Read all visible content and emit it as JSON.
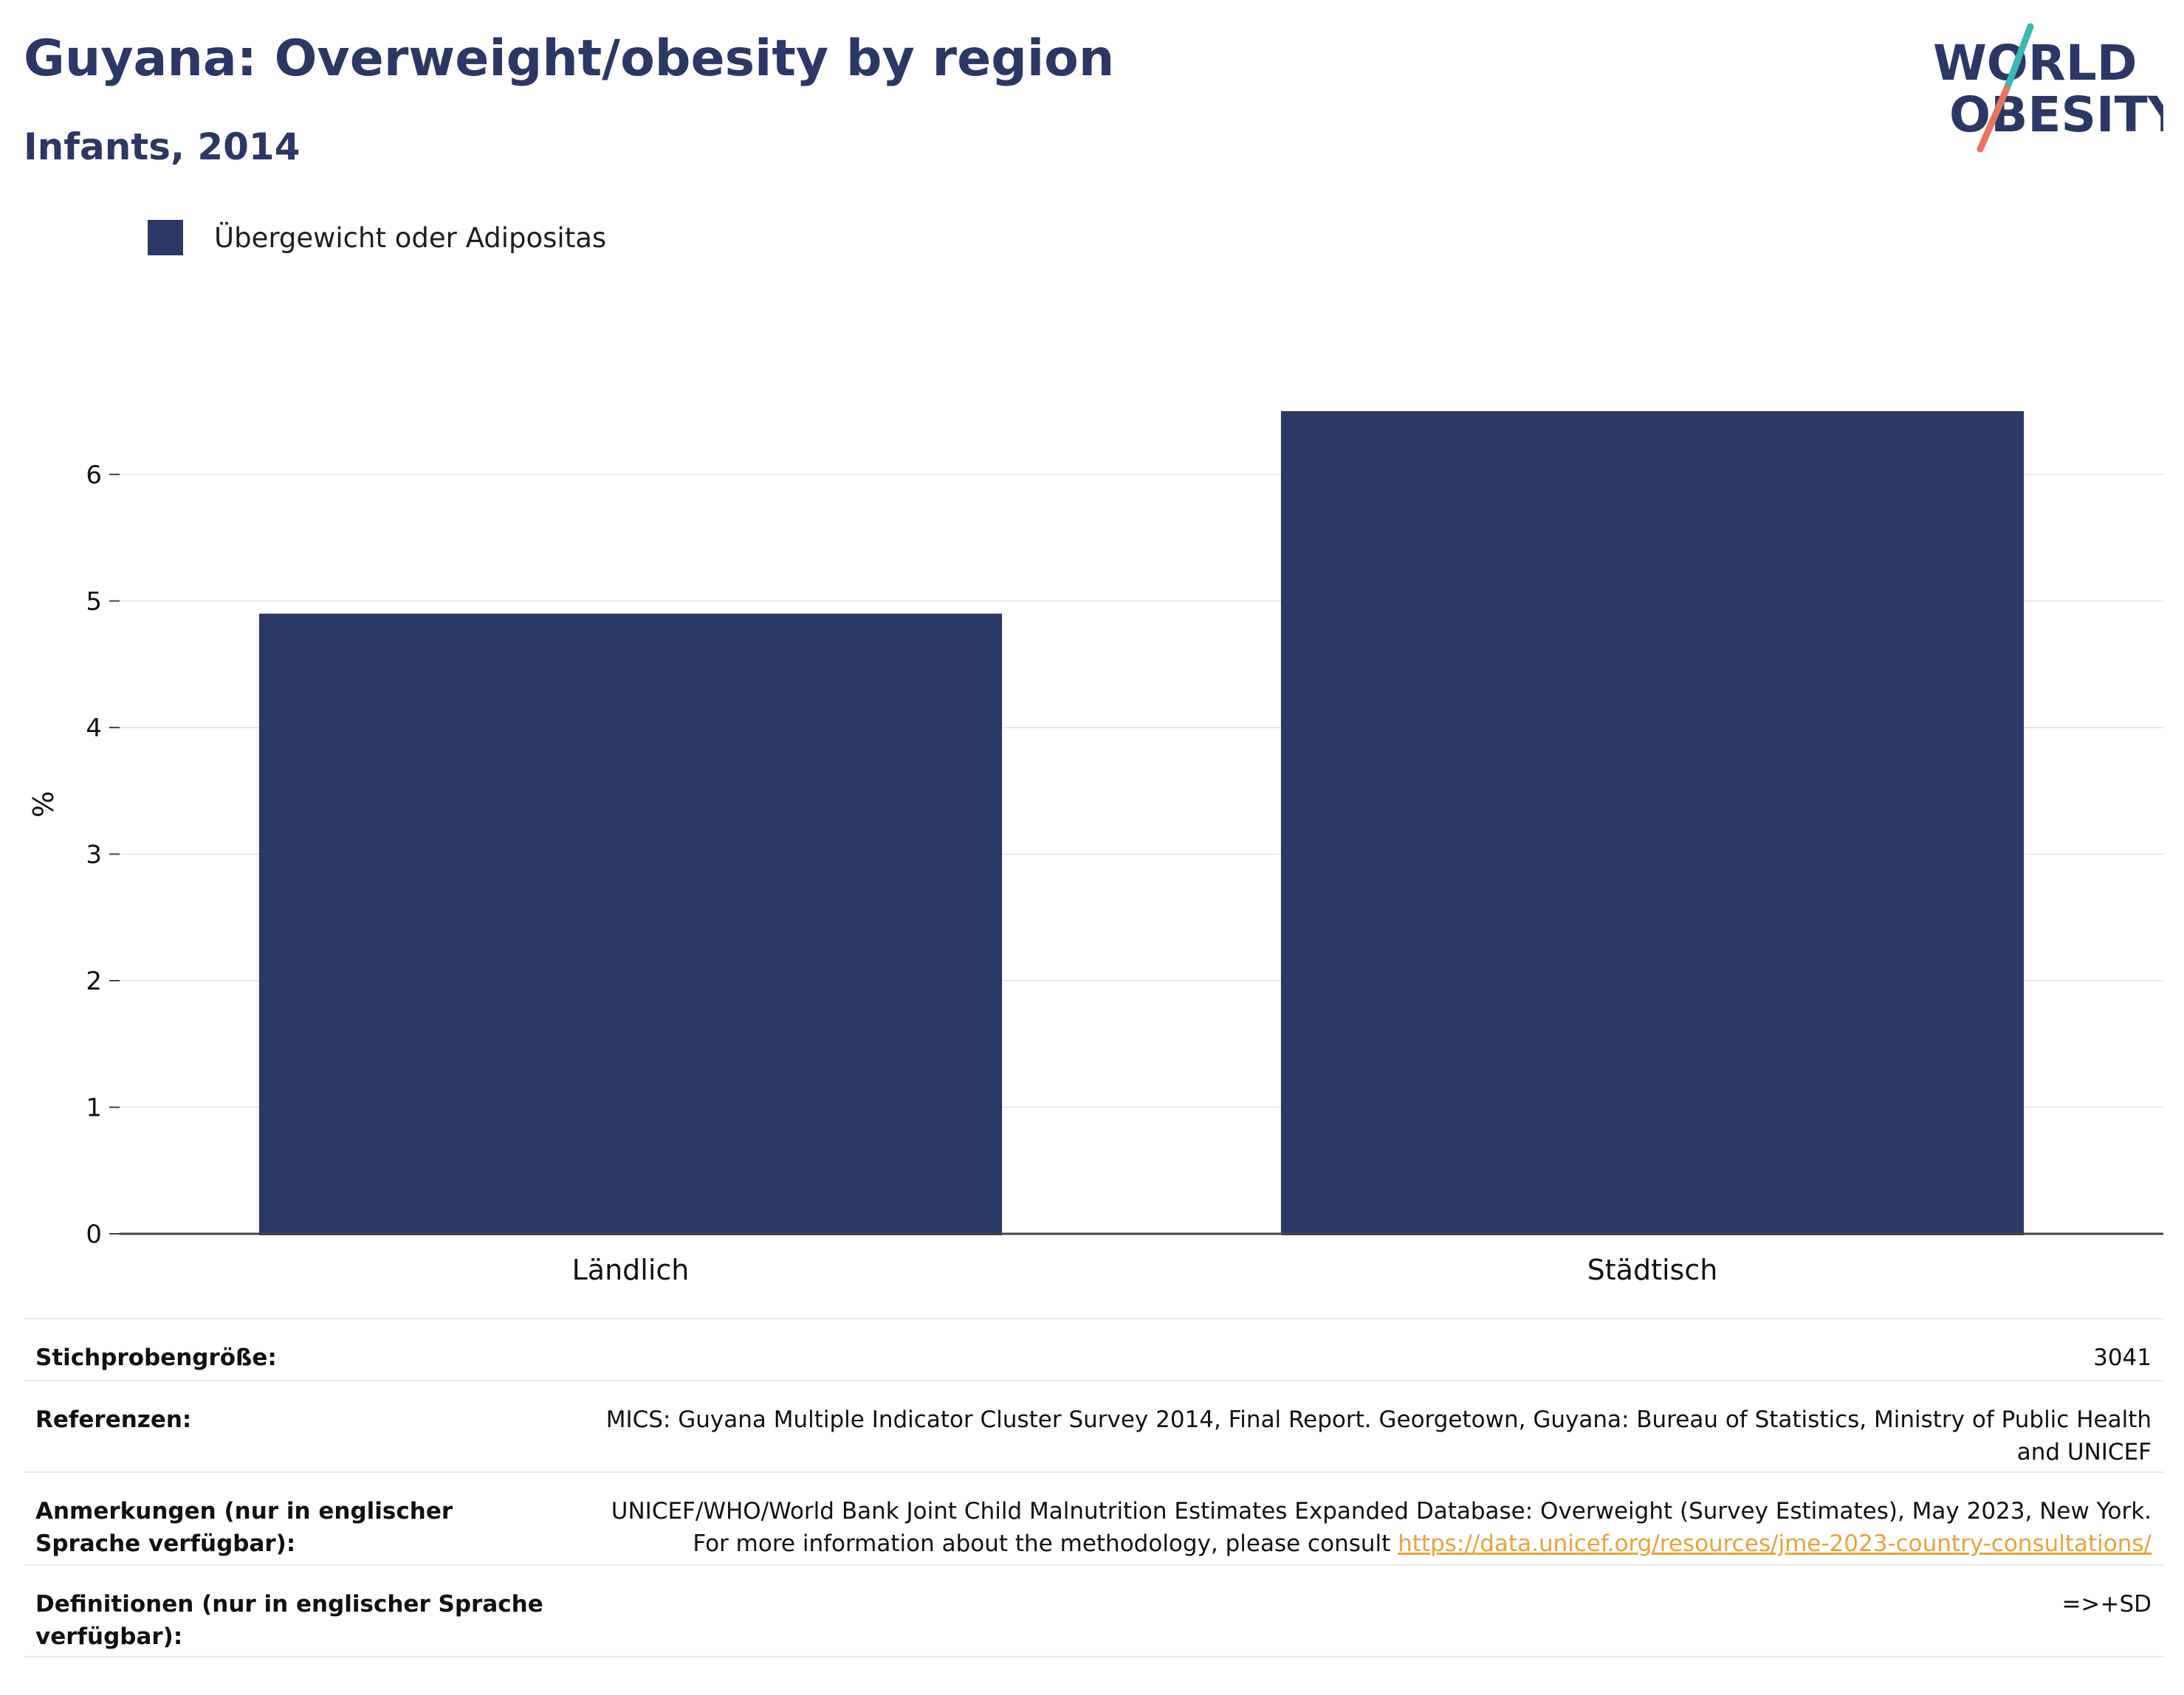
{
  "header": {
    "title": "Guyana: Overweight/obesity by region",
    "subtitle": "Infants, 2014"
  },
  "logo": {
    "line1": "WORLD",
    "line2": "OBESITY",
    "text_color": "#2b3764",
    "accent_teal": "#3bb8b3",
    "accent_coral": "#e8735f"
  },
  "chart_data": {
    "type": "bar",
    "categories": [
      "Ländlich",
      "Städtisch"
    ],
    "series": [
      {
        "name": "Übergewicht oder Adipositas",
        "values": [
          4.9,
          6.5
        ],
        "color": "#2b3764"
      }
    ],
    "xlabel": "",
    "ylabel": "%",
    "ylim": [
      0,
      6.6
    ],
    "yticks": [
      0,
      1,
      2,
      3,
      4,
      5,
      6
    ],
    "grid": true,
    "legend": "top-left"
  },
  "info": {
    "rows": [
      {
        "label": "Stichprobengröße:",
        "value": "3041"
      },
      {
        "label": "Referenzen:",
        "value": "MICS: Guyana Multiple Indicator Cluster Survey 2014, Final Report. Georgetown, Guyana: Bureau of Statistics, Ministry of Public Health and UNICEF"
      },
      {
        "label": "Anmerkungen (nur in englischer Sprache verfügbar):",
        "value": "UNICEF/WHO/World Bank Joint Child Malnutrition Estimates Expanded Database: Overweight (Survey Estimates), May 2023, New York. For more information about the methodology, please consult",
        "link": "https://data.unicef.org/resources/jme-2023-country-consultations/"
      },
      {
        "label": "Definitionen (nur in englischer Sprache verfügbar):",
        "value": "=>+SD"
      }
    ]
  }
}
